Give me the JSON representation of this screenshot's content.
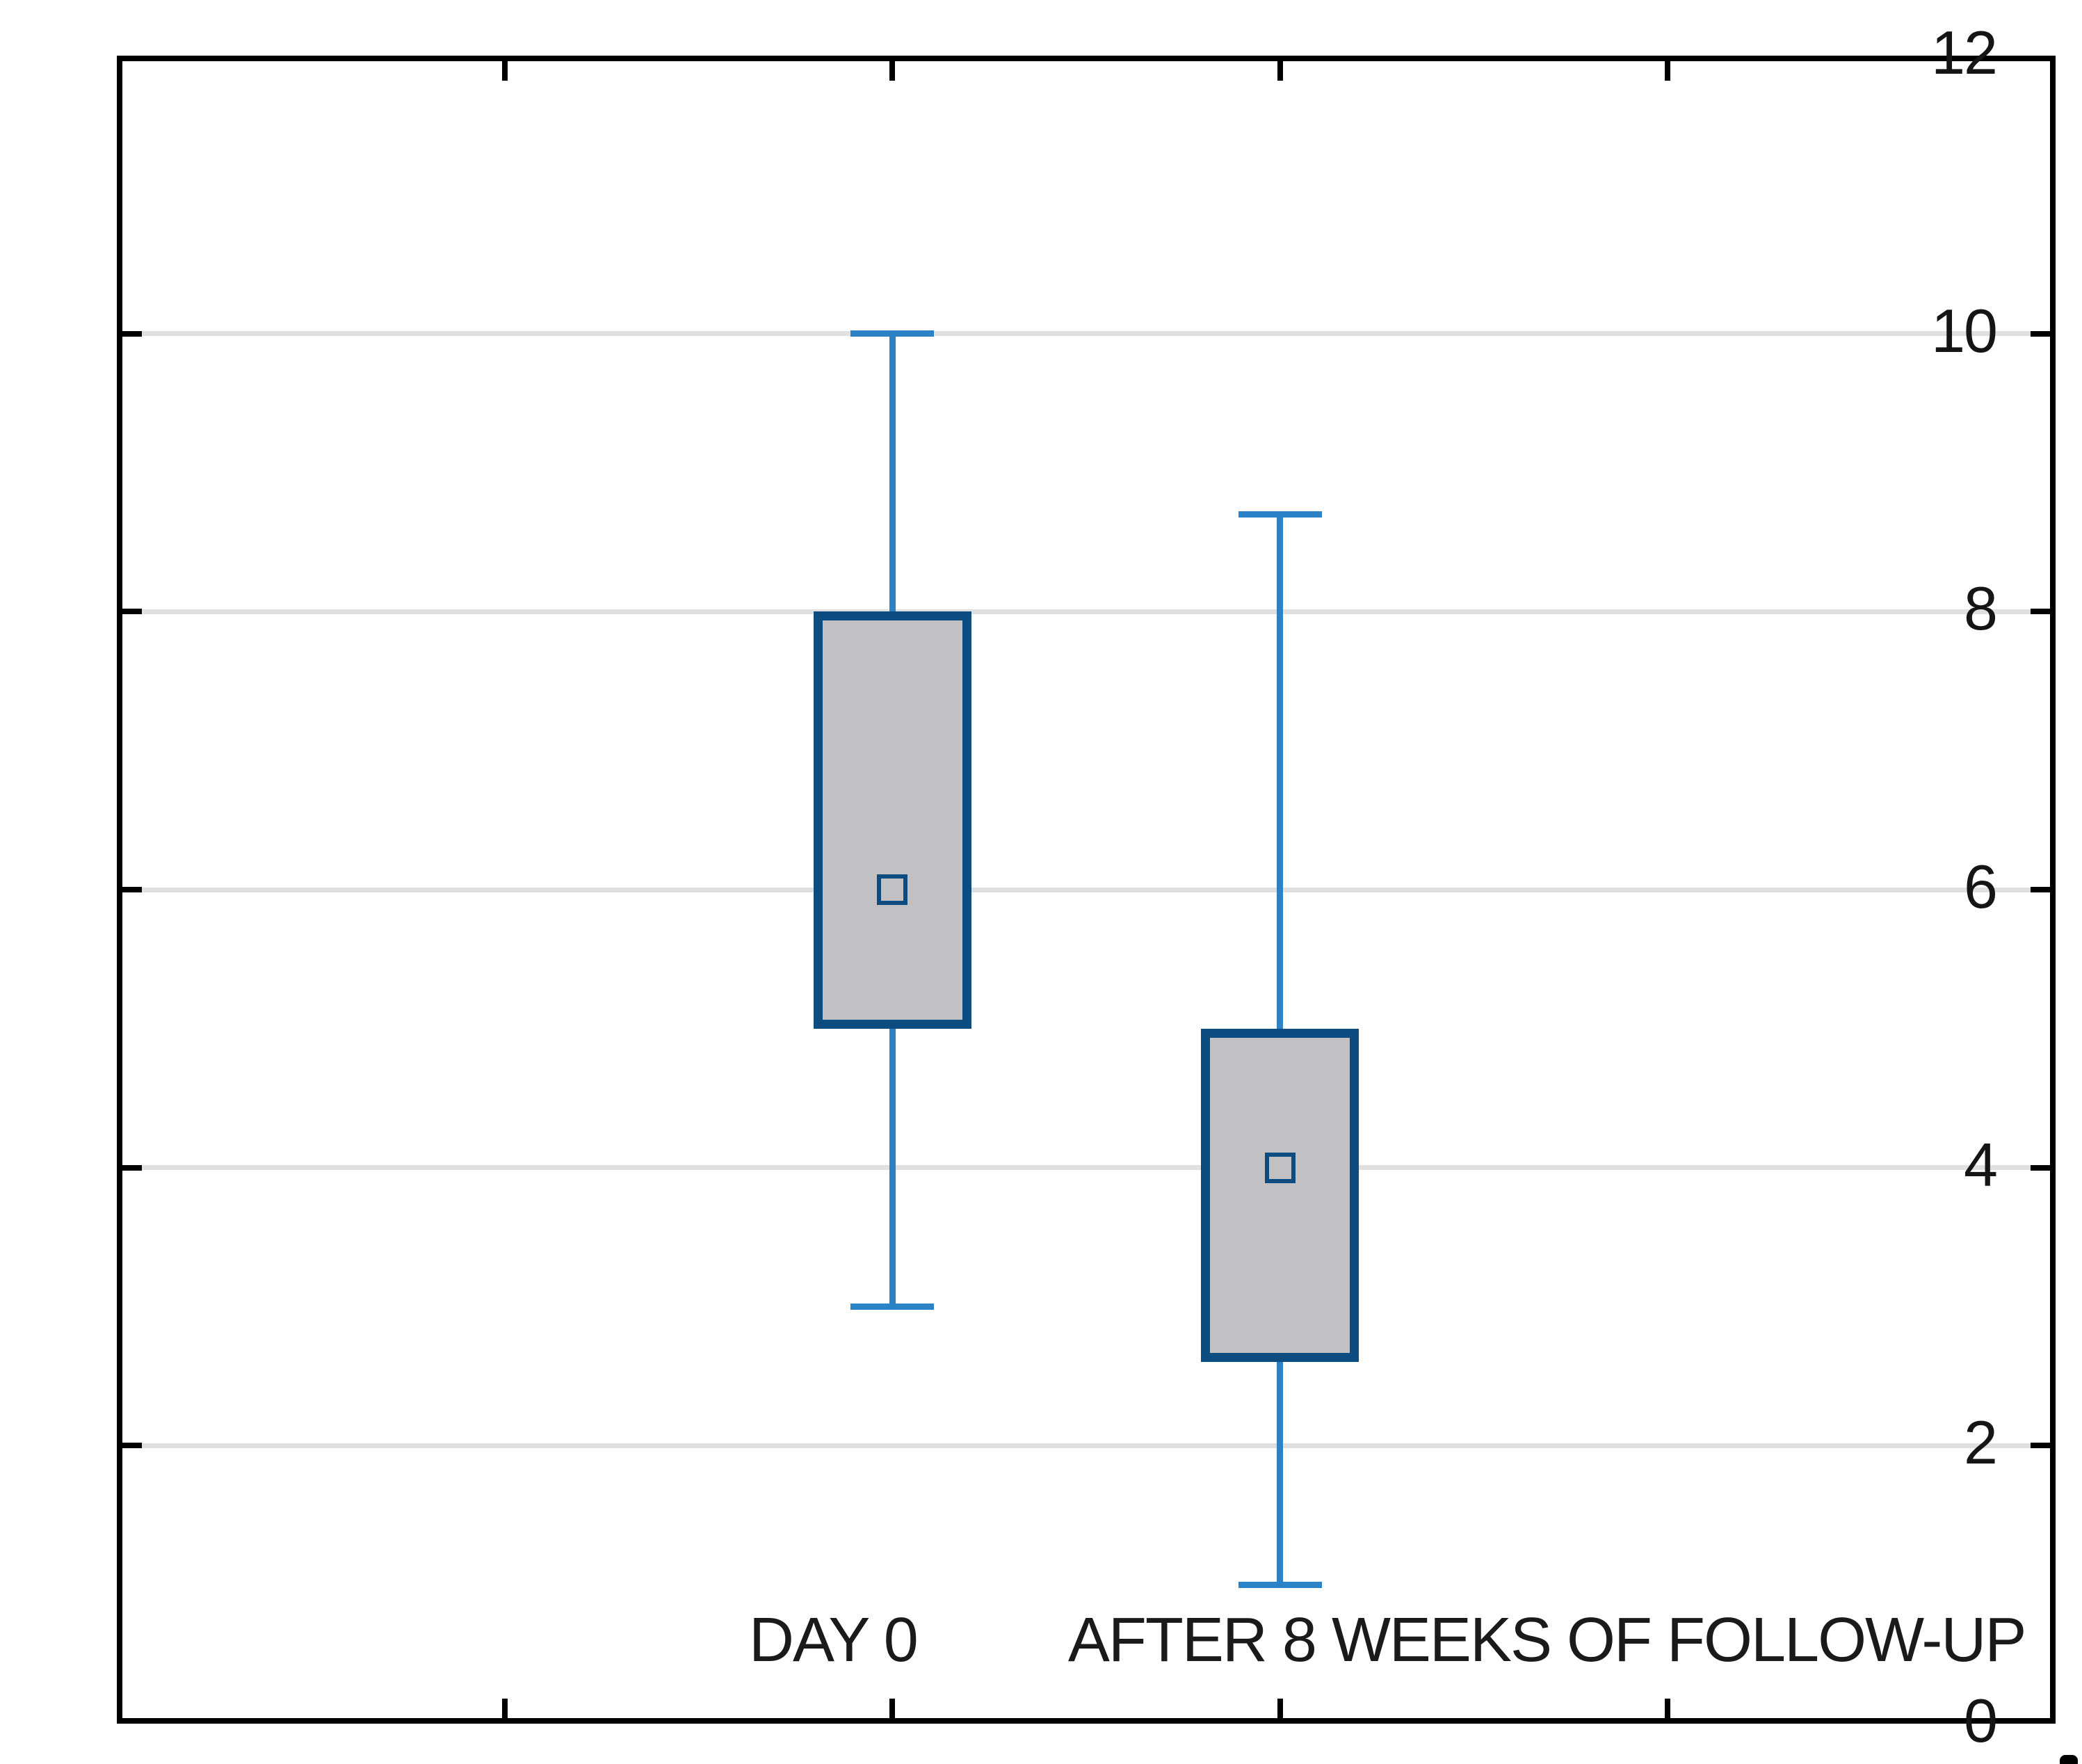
{
  "chart_data": {
    "type": "boxplot",
    "title": "",
    "xlabel": "",
    "ylabel": "",
    "ylim": [
      0,
      12
    ],
    "yticks": [
      0,
      2,
      4,
      6,
      8,
      10,
      12
    ],
    "grid": "horizontal-light-gray",
    "legend": "none",
    "categories": [
      "DAY 0",
      "AFTER 8 WEEKS OF FOLLOW-UP"
    ],
    "series": [
      {
        "name": "DAY 0",
        "whisker_low": 3,
        "q1": 5,
        "median": 6,
        "q3": 8,
        "whisker_high": 10,
        "marker": "open-square-at-median"
      },
      {
        "name": "AFTER 8 WEEKS OF FOLLOW-UP",
        "whisker_low": 1,
        "q1": 2.6,
        "median": 4,
        "q3": 5,
        "whisker_high": 8.7,
        "marker": "open-square-at-median"
      }
    ],
    "colors": {
      "whisker": "#2b82c6",
      "box_border": "#0d4c80",
      "box_fill": "#c1c1c3",
      "gridline": "#e0e0e0",
      "axis_frame": "#000000",
      "tick_label_text": "#151515",
      "category_label_text": "#1a1a1a",
      "background": "#ffffff"
    }
  }
}
